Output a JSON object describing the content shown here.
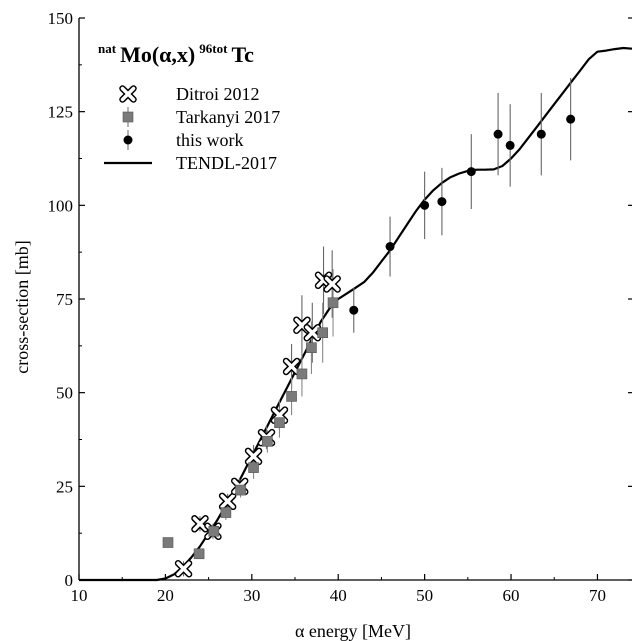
{
  "chart_data": {
    "type": "scatter",
    "title_parts": {
      "sup1": "nat",
      "main1": "Mo(α,x)",
      "sup2": "96tot",
      "main2": "Tc"
    },
    "xlabel": "α energy [MeV]",
    "ylabel": "cross-section [mb]",
    "xlim": [
      10,
      74
    ],
    "ylim": [
      0,
      150
    ],
    "xticks": [
      10,
      20,
      30,
      40,
      50,
      60,
      70
    ],
    "yticks": [
      0,
      25,
      50,
      75,
      100,
      125,
      150
    ],
    "legend_position": "top-left",
    "series": [
      {
        "name": "Ditroi 2012",
        "marker": "x-cross",
        "color": "#000000",
        "points": [
          {
            "x": 22.1,
            "y": 3,
            "err": 2
          },
          {
            "x": 24.0,
            "y": 15,
            "err": 2
          },
          {
            "x": 25.5,
            "y": 13,
            "err": 2
          },
          {
            "x": 27.2,
            "y": 21,
            "err": 2
          },
          {
            "x": 28.6,
            "y": 25,
            "err": 2
          },
          {
            "x": 30.2,
            "y": 33,
            "err": 3
          },
          {
            "x": 31.7,
            "y": 38,
            "err": 3
          },
          {
            "x": 33.2,
            "y": 44,
            "err": 4
          },
          {
            "x": 34.6,
            "y": 57,
            "err": 6
          },
          {
            "x": 35.8,
            "y": 68,
            "err": 8
          },
          {
            "x": 37.0,
            "y": 66,
            "err": 8
          },
          {
            "x": 38.3,
            "y": 80,
            "err": 9
          },
          {
            "x": 39.3,
            "y": 79,
            "err": 9
          }
        ]
      },
      {
        "name": "Tarkanyi 2017",
        "marker": "square",
        "color": "#7a7a7a",
        "points": [
          {
            "x": 20.3,
            "y": 10,
            "err": 1
          },
          {
            "x": 23.9,
            "y": 7,
            "err": 1
          },
          {
            "x": 25.6,
            "y": 13,
            "err": 1
          },
          {
            "x": 27.0,
            "y": 18,
            "err": 2
          },
          {
            "x": 28.7,
            "y": 24,
            "err": 2
          },
          {
            "x": 30.2,
            "y": 30,
            "err": 3
          },
          {
            "x": 31.8,
            "y": 37,
            "err": 3
          },
          {
            "x": 33.2,
            "y": 42,
            "err": 4
          },
          {
            "x": 34.6,
            "y": 49,
            "err": 5
          },
          {
            "x": 35.8,
            "y": 55,
            "err": 6
          },
          {
            "x": 36.9,
            "y": 62,
            "err": 7
          },
          {
            "x": 38.2,
            "y": 66,
            "err": 8
          },
          {
            "x": 39.4,
            "y": 74,
            "err": 9
          }
        ]
      },
      {
        "name": "this work",
        "marker": "circle",
        "color": "#000000",
        "points": [
          {
            "x": 41.8,
            "y": 72,
            "err": 6
          },
          {
            "x": 46.0,
            "y": 89,
            "err": 8
          },
          {
            "x": 50.0,
            "y": 100,
            "err": 9
          },
          {
            "x": 52.0,
            "y": 101,
            "err": 9
          },
          {
            "x": 55.4,
            "y": 109,
            "err": 10
          },
          {
            "x": 58.5,
            "y": 119,
            "err": 11
          },
          {
            "x": 59.9,
            "y": 116,
            "err": 11
          },
          {
            "x": 63.5,
            "y": 119,
            "err": 11
          },
          {
            "x": 66.9,
            "y": 123,
            "err": 11
          }
        ]
      }
    ],
    "lines": [
      {
        "name": "TENDL-2017",
        "color": "#000000",
        "points": [
          [
            10,
            0
          ],
          [
            19,
            0
          ],
          [
            20,
            0.4
          ],
          [
            21,
            1.5
          ],
          [
            22,
            3.5
          ],
          [
            23,
            6
          ],
          [
            24,
            9
          ],
          [
            25,
            12.5
          ],
          [
            26,
            16
          ],
          [
            27,
            20
          ],
          [
            28,
            24
          ],
          [
            29,
            28.5
          ],
          [
            30,
            33
          ],
          [
            31,
            37.5
          ],
          [
            32,
            42
          ],
          [
            33,
            46.5
          ],
          [
            34,
            51
          ],
          [
            35,
            55.5
          ],
          [
            36,
            60
          ],
          [
            37,
            64.5
          ],
          [
            38,
            69
          ],
          [
            39,
            72.5
          ],
          [
            40,
            75
          ],
          [
            41,
            76.5
          ],
          [
            42,
            78
          ],
          [
            43,
            79.5
          ],
          [
            44,
            82
          ],
          [
            45,
            85
          ],
          [
            46,
            88
          ],
          [
            47,
            91.5
          ],
          [
            48,
            95
          ],
          [
            49,
            98.5
          ],
          [
            50,
            101.5
          ],
          [
            51,
            104
          ],
          [
            52,
            106
          ],
          [
            53,
            107.5
          ],
          [
            54,
            108.5
          ],
          [
            55,
            109.2
          ],
          [
            56,
            109.5
          ],
          [
            57,
            109.5
          ],
          [
            58,
            109.6
          ],
          [
            59,
            110.5
          ],
          [
            60,
            112.5
          ],
          [
            61,
            115
          ],
          [
            62,
            118
          ],
          [
            63,
            121
          ],
          [
            64,
            124
          ],
          [
            65,
            127
          ],
          [
            66,
            130
          ],
          [
            67,
            133
          ],
          [
            68,
            136
          ],
          [
            69,
            139
          ],
          [
            70,
            141
          ],
          [
            71,
            141.3
          ],
          [
            72,
            141.7
          ],
          [
            73,
            142
          ],
          [
            74,
            141.8
          ]
        ]
      }
    ]
  }
}
